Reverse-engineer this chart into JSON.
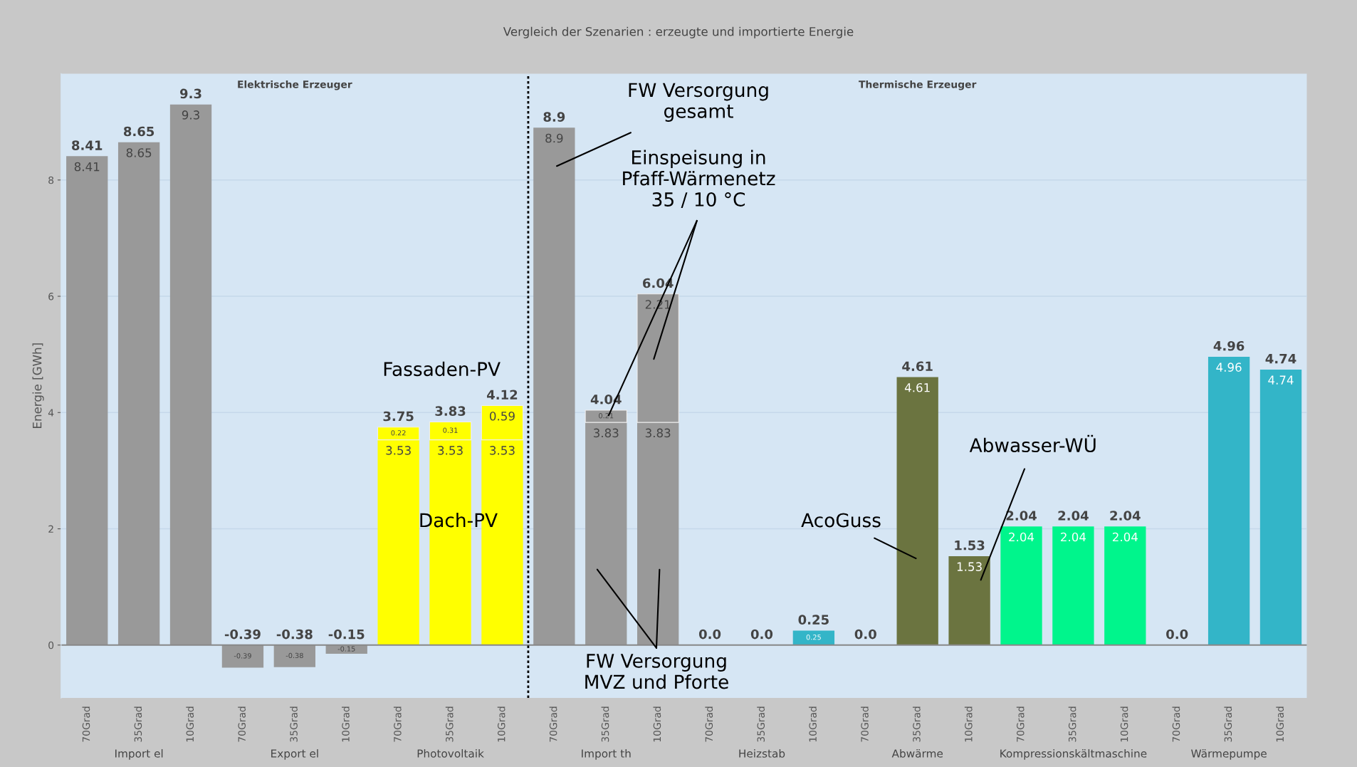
{
  "chart_data": {
    "type": "bar",
    "stacked": true,
    "title": "Vergleich der Szenarien : erzeugte und importierte Energie",
    "ylabel": "Energie [GWh]",
    "categories": [
      "70Grad",
      "35Grad",
      "10Grad",
      "70Grad",
      "35Grad",
      "10Grad",
      "70Grad",
      "35Grad",
      "10Grad",
      "70Grad",
      "35Grad",
      "10Grad",
      "70Grad",
      "35Grad",
      "10Grad",
      "70Grad",
      "35Grad",
      "10Grad",
      "70Grad",
      "35Grad",
      "10Grad",
      "70Grad",
      "35Grad",
      "10Grad"
    ],
    "series": [
      {
        "values": [
          8.41,
          8.65,
          9.3,
          -0.39,
          -0.38,
          -0.15,
          3.53,
          3.53,
          3.53,
          8.9,
          3.83,
          3.83,
          0,
          0,
          0.25,
          0,
          4.61,
          1.53,
          2.04,
          2.04,
          2.04,
          0,
          4.96,
          4.74
        ],
        "value_labels": [
          "8.41",
          "8.65",
          "9.3",
          "-0.39",
          "-0.38",
          "-0.15",
          "3.53",
          "3.53",
          "3.53",
          "8.9",
          "3.83",
          "3.83",
          null,
          null,
          "0.25",
          null,
          "4.61",
          "1.53",
          "2.04",
          "2.04",
          "2.04",
          null,
          "4.96",
          "4.74"
        ],
        "colors": [
          "#999999",
          "#999999",
          "#999999",
          "#999999",
          "#999999",
          "#999999",
          "#ffff00",
          "#ffff00",
          "#ffff00",
          "#999999",
          "#999999",
          "#999999",
          "#33b5c8",
          "#33b5c8",
          "#33b5c8",
          "#6b7440",
          "#6b7440",
          "#6b7440",
          "#00f58c",
          "#00f58c",
          "#00f58c",
          "#33b5c8",
          "#33b5c8",
          "#33b5c8"
        ]
      },
      {
        "values": [
          null,
          null,
          null,
          null,
          null,
          null,
          0.22,
          0.31,
          0.59,
          null,
          0.21,
          2.21,
          null,
          null,
          null,
          null,
          null,
          null,
          null,
          null,
          null,
          null,
          null,
          null
        ],
        "value_labels": [
          null,
          null,
          null,
          null,
          null,
          null,
          "0.22",
          "0.31",
          "0.59",
          null,
          "0.21",
          "2.21",
          null,
          null,
          null,
          null,
          null,
          null,
          null,
          null,
          null,
          null,
          null,
          null
        ],
        "colors": [
          "#999999",
          "#999999",
          "#999999",
          "#999999",
          "#999999",
          "#999999",
          "#ffff00",
          "#ffff00",
          "#ffff00",
          "#999999",
          "#999999",
          "#999999",
          "#999999",
          "#999999",
          "#999999",
          "#999999",
          "#999999",
          "#999999",
          "#999999",
          "#999999",
          "#999999",
          "#999999",
          "#999999",
          "#999999"
        ]
      }
    ],
    "totals": [
      "8.41",
      "8.65",
      "9.3",
      "-0.39",
      "-0.38",
      "-0.15",
      "3.75",
      "3.83",
      "4.12",
      "8.9",
      "4.04",
      "6.04",
      "0.0",
      "0.0",
      "0.25",
      "0.0",
      "4.61",
      "1.53",
      "2.04",
      "2.04",
      "2.04",
      "0.0",
      "4.96",
      "4.74"
    ],
    "data_labels": true,
    "ylim": [
      -0.91,
      9.83
    ],
    "yticks": [
      0,
      2,
      4,
      6,
      8
    ],
    "grid": "y",
    "annotations": [
      "Import el",
      "Export el",
      "Photovoltaik",
      "Import th",
      "Heizstab",
      "Abwärme",
      "Kompressionskältmaschine",
      "Wärmepumpe",
      "Elektrische Erzeuger",
      "Thermische Erzeuger",
      "FW Versorgung\ngesamt",
      "Einspeisung in\nPfaff-Wärmenetz\n35 / 10 °C",
      "Fassaden-PV",
      "Dach-PV",
      "AcoGuss",
      "Abwasser-WÜ",
      "FW Versorgung\nMVZ und Pforte"
    ]
  }
}
